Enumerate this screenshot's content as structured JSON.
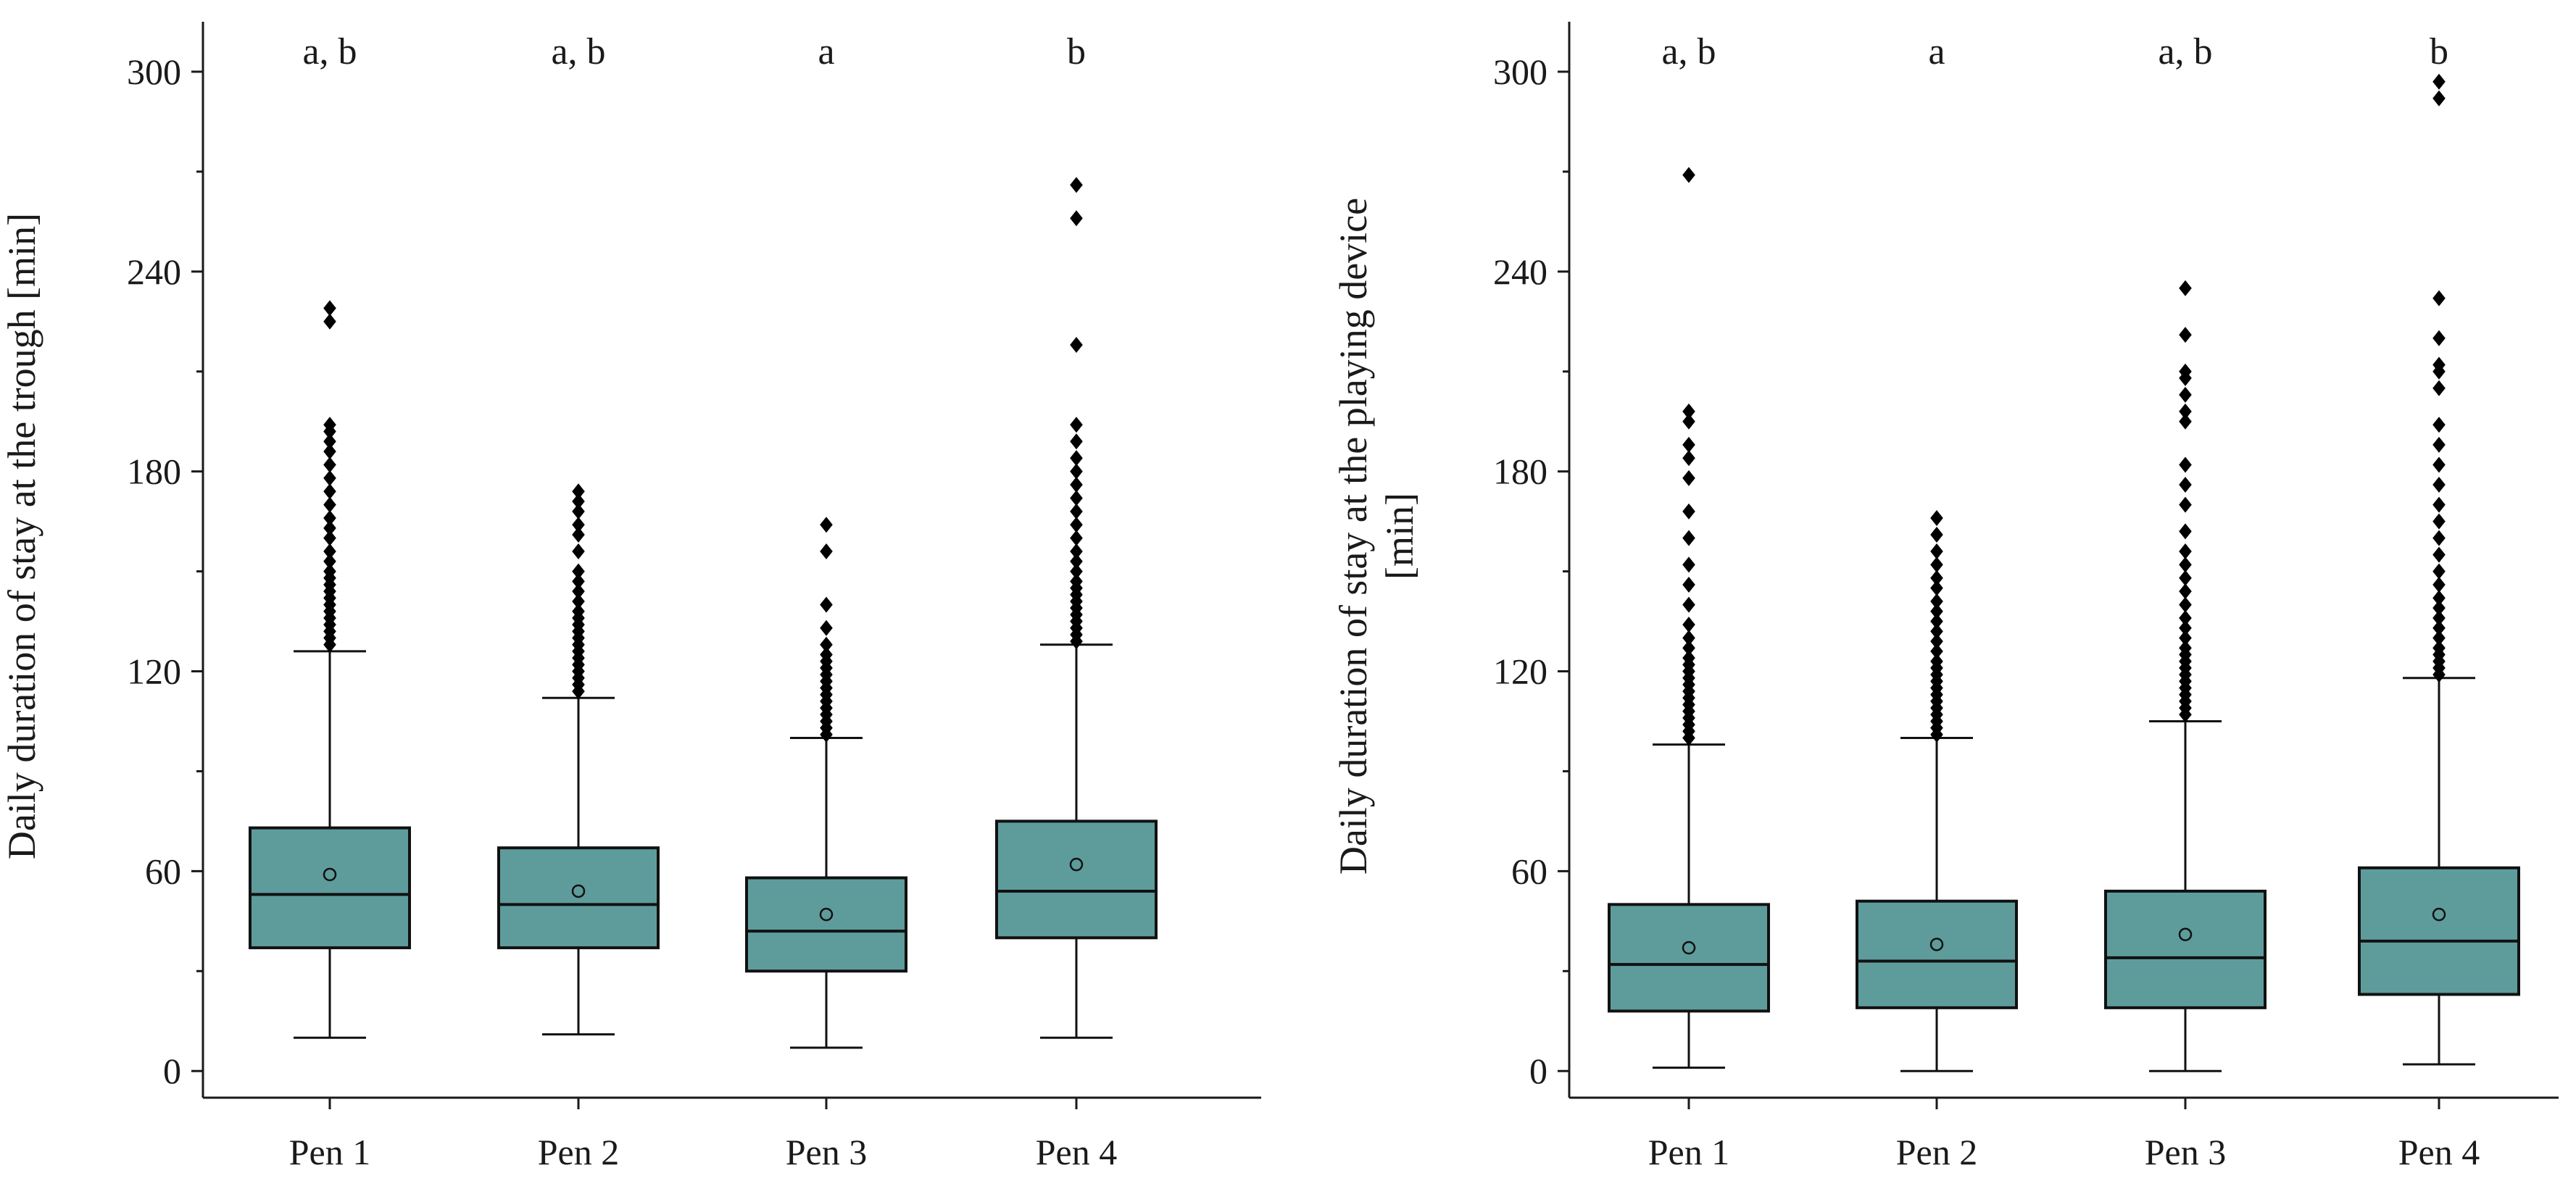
{
  "colors": {
    "box_fill": "#5E9C9C",
    "line": "#111111"
  },
  "chart_data": [
    {
      "type": "box",
      "ylabel": "Daily duration of stay at the trough [min]",
      "ylim": [
        -8,
        315
      ],
      "yticks": [
        0,
        60,
        120,
        180,
        240,
        300
      ],
      "categories": [
        "Pen 1",
        "Pen 2",
        "Pen 3",
        "Pen 4"
      ],
      "significance": [
        "a, b",
        "a, b",
        "a",
        "b"
      ],
      "boxes": [
        {
          "min": 10,
          "q1": 37,
          "median": 53,
          "q3": 73,
          "max": 126,
          "mean": 59,
          "outliers": [
            128,
            130,
            132,
            134,
            136,
            138,
            140,
            142,
            144,
            146,
            148,
            150,
            153,
            156,
            160,
            163,
            166,
            170,
            174,
            178,
            182,
            186,
            189,
            192,
            194,
            225,
            229
          ]
        },
        {
          "min": 11,
          "q1": 37,
          "median": 50,
          "q3": 67,
          "max": 112,
          "mean": 54,
          "outliers": [
            114,
            116,
            118,
            120,
            122,
            124,
            126,
            128,
            130,
            132,
            134,
            136,
            138,
            141,
            144,
            147,
            150,
            156,
            161,
            164,
            168,
            171,
            174
          ]
        },
        {
          "min": 7,
          "q1": 30,
          "median": 42,
          "q3": 58,
          "max": 100,
          "mean": 47,
          "outliers": [
            101,
            103,
            105,
            107,
            109,
            111,
            113,
            115,
            117,
            119,
            121,
            123,
            125,
            128,
            133,
            140,
            156,
            164
          ]
        },
        {
          "min": 10,
          "q1": 40,
          "median": 54,
          "q3": 75,
          "max": 128,
          "mean": 62,
          "outliers": [
            129,
            131,
            133,
            135,
            137,
            139,
            141,
            143,
            145,
            147,
            150,
            153,
            156,
            160,
            164,
            168,
            172,
            176,
            180,
            184,
            189,
            194,
            218,
            256,
            266
          ]
        }
      ]
    },
    {
      "type": "box",
      "ylabel": [
        "Daily duration of stay at the playing device",
        "[min]"
      ],
      "ylim": [
        -8,
        315
      ],
      "yticks": [
        0,
        60,
        120,
        180,
        240,
        300
      ],
      "categories": [
        "Pen 1",
        "Pen 2",
        "Pen 3",
        "Pen 4"
      ],
      "significance": [
        "a, b",
        "a",
        "a, b",
        "b"
      ],
      "boxes": [
        {
          "min": 1,
          "q1": 18,
          "median": 32,
          "q3": 50,
          "max": 98,
          "mean": 37,
          "outliers": [
            100,
            102,
            104,
            106,
            108,
            110,
            112,
            114,
            116,
            118,
            120,
            122,
            124,
            127,
            130,
            134,
            140,
            146,
            152,
            160,
            168,
            178,
            184,
            188,
            195,
            198,
            269
          ]
        },
        {
          "min": 0,
          "q1": 19,
          "median": 33,
          "q3": 51,
          "max": 100,
          "mean": 38,
          "outliers": [
            101,
            103,
            105,
            107,
            109,
            111,
            113,
            115,
            117,
            119,
            121,
            123,
            126,
            129,
            132,
            135,
            138,
            141,
            145,
            148,
            152,
            156,
            161,
            166
          ]
        },
        {
          "min": 0,
          "q1": 19,
          "median": 34,
          "q3": 54,
          "max": 105,
          "mean": 41,
          "outliers": [
            107,
            109,
            111,
            113,
            115,
            117,
            119,
            121,
            123,
            125,
            127,
            130,
            133,
            136,
            140,
            144,
            148,
            152,
            156,
            162,
            170,
            176,
            182,
            195,
            198,
            203,
            208,
            210,
            221,
            235
          ]
        },
        {
          "min": 2,
          "q1": 23,
          "median": 39,
          "q3": 61,
          "max": 118,
          "mean": 47,
          "outliers": [
            119,
            121,
            123,
            125,
            127,
            130,
            133,
            136,
            139,
            142,
            146,
            150,
            155,
            160,
            165,
            170,
            176,
            182,
            188,
            194,
            205,
            210,
            212,
            220,
            232,
            292,
            297
          ]
        }
      ]
    }
  ]
}
